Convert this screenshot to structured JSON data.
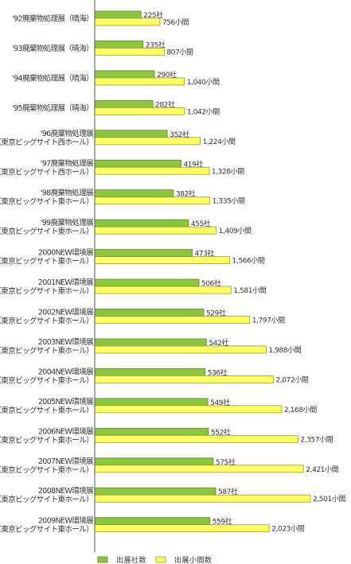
{
  "chart_data": {
    "type": "bar",
    "orientation": "horizontal",
    "categories": [
      [
        "'92廃棄物処理展（晴海）"
      ],
      [
        "'93廃棄物処理展（晴海）"
      ],
      [
        "'94廃棄物処理展（晴海）"
      ],
      [
        "'95廃棄物処理展（晴海）"
      ],
      [
        "'96廃棄物処理展",
        "（東京ビッグサイト西ホール）"
      ],
      [
        "'97廃棄物処理展",
        "（東京ビッグサイト西ホール）"
      ],
      [
        "'98廃棄物処理展",
        "（東京ビッグサイト東ホール）"
      ],
      [
        "'99廃棄物処理展",
        "（東京ビッグサイト東ホール）"
      ],
      [
        "2000NEW環境展",
        "（東京ビッグサイト東ホール）"
      ],
      [
        "2001NEW環境展",
        "（東京ビッグサイト東ホール）"
      ],
      [
        "2002NEW環境展",
        "（東京ビッグサイト東ホール）"
      ],
      [
        "2003NEW環境展",
        "（東京ビッグサイト東ホール）"
      ],
      [
        "2004NEW環境展",
        "（東京ビッグサイト東ホール）"
      ],
      [
        "2005NEW環境展",
        "（東京ビッグサイト東ホール）"
      ],
      [
        "2006NEW環境展",
        "（東京ビッグサイト東ホール）"
      ],
      [
        "2007NEW環境展",
        "（東京ビッグサイト東ホール）"
      ],
      [
        "2008NEW環境展",
        "（東京ビッグサイト東ホール）"
      ],
      [
        "2009NEW環境展",
        "（東京ビッグサイト東ホール）"
      ]
    ],
    "series": [
      {
        "name": "出展社数",
        "color": "#8cc63f",
        "values": [
          225,
          235,
          290,
          282,
          352,
          419,
          382,
          455,
          473,
          506,
          529,
          542,
          536,
          549,
          552,
          575,
          587,
          559
        ],
        "data_labels": [
          "225社",
          "235社",
          "290社",
          "282社",
          "352社",
          "419社",
          "382社",
          "455社",
          "473社",
          "506社",
          "529社",
          "542社",
          "536社",
          "549社",
          "552社",
          "575社",
          "587社",
          "559社"
        ]
      },
      {
        "name": "出展小間数",
        "color": "#ffff66",
        "values": [
          756,
          807,
          1040,
          1042,
          1224,
          1328,
          1335,
          1409,
          1566,
          1581,
          1797,
          1988,
          2072,
          2168,
          2357,
          2421,
          2501,
          2023
        ],
        "data_labels": [
          "756小間",
          "807小間",
          "1,040小間",
          "1,042小間",
          "1,224小間",
          "1,328小間",
          "1,335小間",
          "1,409小間",
          "1,566小間",
          "1,581小間",
          "1,797小間",
          "1,988小間",
          "2,072小間",
          "2,168小間",
          "2,357小間",
          "2,421小間",
          "2,501小間",
          "2,023小間"
        ]
      }
    ],
    "legend_position": "bottom",
    "grid": false
  }
}
